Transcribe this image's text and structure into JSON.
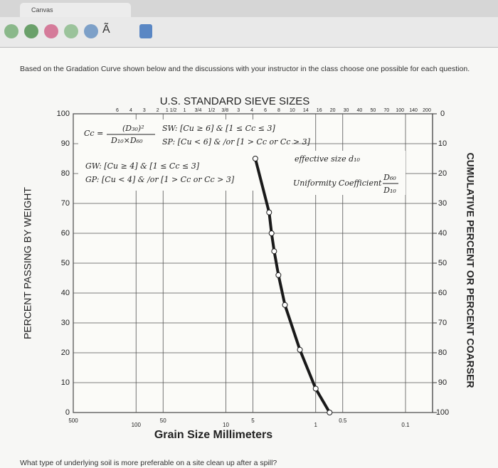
{
  "browser": {
    "tab_title": "Canvas",
    "toolbar_glyph": "Ã"
  },
  "question": {
    "prompt": "Based on the Gradation Curve shown below and the discussions with your instructor in the class choose one possible for each question.",
    "next": "What type of underlying soil is more preferable on a site clean up after a spill?"
  },
  "chart_data": {
    "type": "line",
    "title": "U.S. STANDARD SIEVE SIZES",
    "sieve_labels": [
      "6",
      "4",
      "3",
      "2",
      "1 1/2",
      "1",
      "3/4",
      "1/2",
      "3/8",
      "3",
      "4",
      "6",
      "8",
      "10",
      "14",
      "16",
      "20",
      "30",
      "40",
      "50",
      "70",
      "100",
      "140",
      "200"
    ],
    "x_label": "Grain Size Millimeters",
    "y_label": "PERCENT PASSING BY WEIGHT",
    "y2_label": "CUMULATIVE PERCENT OR PERCENT COARSER",
    "x": [
      4.7,
      3.3,
      3.1,
      2.9,
      2.6,
      2.2,
      1.5,
      1.0,
      0.7
    ],
    "values": [
      85,
      67,
      60,
      54,
      46,
      36,
      21,
      8,
      0
    ],
    "color": "#1a1a1a",
    "x_log": true,
    "xlim": [
      500,
      0.05
    ],
    "xticks": [
      500,
      100,
      50,
      10,
      5,
      1,
      0.5,
      0.1
    ],
    "ylim": [
      0,
      100
    ],
    "yticks": [
      0,
      10,
      20,
      30,
      40,
      50,
      60,
      70,
      80,
      90,
      100
    ],
    "y2lim": [
      100,
      0
    ],
    "y2ticks": [
      0,
      10,
      20,
      30,
      40,
      50,
      60,
      70,
      80,
      90,
      100
    ],
    "grid": true,
    "annotations": [
      "Cc =",
      "(D₃₀)²",
      "D₁₀×D₆₀",
      "SW: [Cu ≥ 6] & [1 ≤ Cc ≤ 3]",
      "SP: [Cu < 6] & /or [1 > Cc or Cc > 3]",
      "GW: [Cu ≥ 4] & [1 ≤ Cc ≤ 3]",
      "GP: [Cu < 4] & /or [1 > Cc or Cc > 3]",
      "effective size d₁₀",
      "Uniformity Coefficient",
      "D₆₀",
      "D₁₀"
    ]
  }
}
